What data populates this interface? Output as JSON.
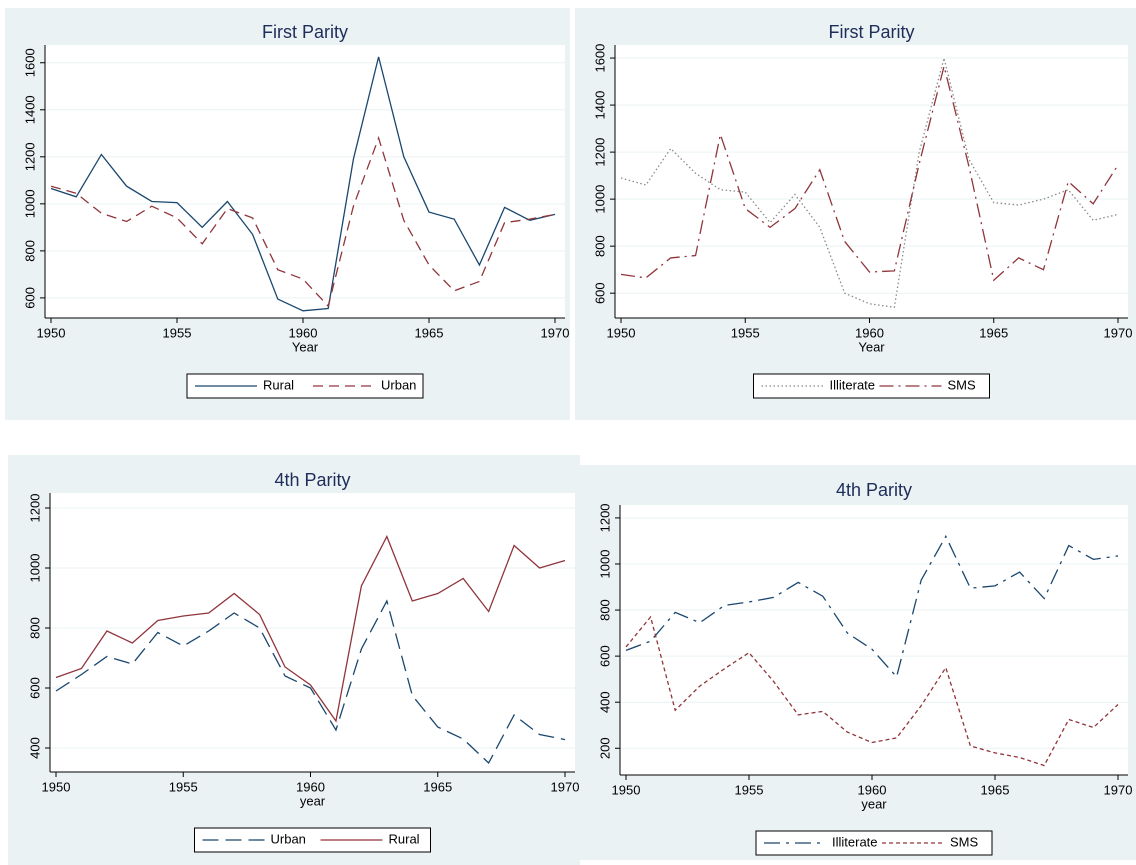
{
  "chart_data": [
    {
      "type": "line",
      "title": "First Parity",
      "x_label": "Year",
      "x": [
        1950,
        1951,
        1952,
        1953,
        1954,
        1955,
        1956,
        1957,
        1958,
        1959,
        1960,
        1961,
        1962,
        1963,
        1964,
        1965,
        1966,
        1967,
        1968,
        1969,
        1970
      ],
      "xlim": [
        1950,
        1970
      ],
      "xticks": [
        1950,
        1955,
        1960,
        1965,
        1970
      ],
      "ylim": [
        540,
        1650
      ],
      "yticks": [
        600,
        800,
        1000,
        1200,
        1400,
        1600
      ],
      "grid": true,
      "legend": "bottom",
      "series": [
        {
          "name": "Rural",
          "color": "#1a476f",
          "line_style": "solid",
          "values": [
            1065,
            1030,
            1210,
            1075,
            1010,
            1005,
            900,
            1010,
            870,
            595,
            545,
            555,
            1190,
            1625,
            1200,
            965,
            935,
            740,
            985,
            930,
            955
          ]
        },
        {
          "name": "Urban",
          "color": "#90353b",
          "line_style": "dashed",
          "values": [
            1075,
            1045,
            960,
            925,
            990,
            940,
            830,
            980,
            940,
            720,
            680,
            565,
            990,
            1280,
            930,
            740,
            630,
            670,
            920,
            935,
            955
          ]
        }
      ]
    },
    {
      "type": "line",
      "title": "First Parity",
      "x_label": "Year",
      "x": [
        1950,
        1951,
        1952,
        1953,
        1954,
        1955,
        1956,
        1957,
        1958,
        1959,
        1960,
        1961,
        1962,
        1963,
        1964,
        1965,
        1966,
        1967,
        1968,
        1969,
        1970
      ],
      "xlim": [
        1950,
        1970
      ],
      "xticks": [
        1950,
        1955,
        1960,
        1965,
        1970
      ],
      "ylim": [
        520,
        1630
      ],
      "yticks": [
        600,
        800,
        1000,
        1200,
        1400,
        1600
      ],
      "grid": true,
      "legend": "bottom",
      "series": [
        {
          "name": "Illiterate",
          "color": "#8a8a8a",
          "line_style": "dotted",
          "values": [
            1090,
            1060,
            1215,
            1110,
            1040,
            1030,
            900,
            1020,
            880,
            600,
            555,
            540,
            1200,
            1600,
            1170,
            985,
            975,
            1000,
            1040,
            910,
            935
          ]
        },
        {
          "name": "SMS",
          "color": "#90353b",
          "line_style": "dashdot",
          "values": [
            680,
            665,
            750,
            760,
            1275,
            960,
            880,
            960,
            1125,
            820,
            690,
            695,
            1150,
            1565,
            1140,
            655,
            750,
            700,
            1075,
            980,
            1145
          ]
        }
      ]
    },
    {
      "type": "line",
      "title": "4th Parity",
      "x_label": "year",
      "x": [
        1950,
        1951,
        1952,
        1953,
        1954,
        1955,
        1956,
        1957,
        1958,
        1959,
        1960,
        1961,
        1962,
        1963,
        1964,
        1965,
        1966,
        1967,
        1968,
        1969,
        1970
      ],
      "xlim": [
        1950,
        1970
      ],
      "xticks": [
        1950,
        1955,
        1960,
        1965,
        1970
      ],
      "ylim": [
        340,
        1230
      ],
      "yticks": [
        400,
        600,
        800,
        1000,
        1200
      ],
      "grid": true,
      "legend": "bottom",
      "series": [
        {
          "name": "Urban",
          "color": "#1a476f",
          "line_style": "longdash",
          "values": [
            590,
            645,
            705,
            680,
            785,
            740,
            790,
            850,
            800,
            640,
            600,
            460,
            730,
            890,
            575,
            470,
            430,
            350,
            510,
            445,
            428
          ]
        },
        {
          "name": "Rural",
          "color": "#90353b",
          "line_style": "solid",
          "values": [
            635,
            665,
            790,
            750,
            825,
            840,
            850,
            915,
            845,
            670,
            610,
            490,
            940,
            1105,
            890,
            915,
            965,
            855,
            1075,
            1000,
            1025
          ]
        }
      ]
    },
    {
      "type": "line",
      "title": "4th Parity",
      "x_label": "year",
      "x": [
        1950,
        1951,
        1952,
        1953,
        1954,
        1955,
        1956,
        1957,
        1958,
        1959,
        1960,
        1961,
        1962,
        1963,
        1964,
        1965,
        1966,
        1967,
        1968,
        1969,
        1970
      ],
      "xlim": [
        1950,
        1970
      ],
      "xticks": [
        1950,
        1955,
        1960,
        1965,
        1970
      ],
      "ylim": [
        110,
        1230
      ],
      "yticks": [
        200,
        400,
        600,
        800,
        1000,
        1200
      ],
      "grid": true,
      "legend": "bottom",
      "series": [
        {
          "name": "Illiterate",
          "color": "#1a476f",
          "line_style": "longdashdot",
          "values": [
            625,
            665,
            790,
            745,
            820,
            835,
            855,
            920,
            860,
            700,
            630,
            510,
            930,
            1120,
            895,
            905,
            965,
            850,
            1080,
            1020,
            1035
          ]
        },
        {
          "name": "SMS",
          "color": "#90353b",
          "line_style": "shortdash",
          "values": [
            640,
            770,
            365,
            470,
            545,
            615,
            490,
            345,
            360,
            270,
            225,
            245,
            385,
            550,
            210,
            180,
            160,
            125,
            325,
            290,
            390
          ]
        }
      ]
    }
  ]
}
